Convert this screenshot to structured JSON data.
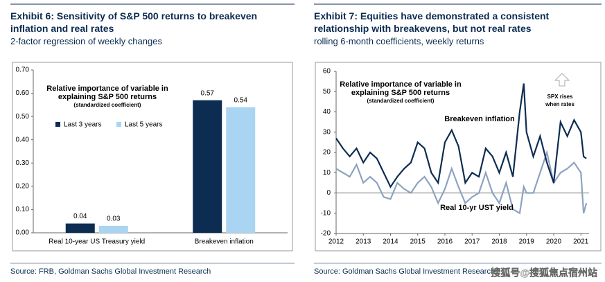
{
  "chart_data": [
    {
      "type": "bar",
      "title": "Exhibit 6: Sensitivity of S&P 500 returns to breakeven inflation and real rates",
      "subtitle": "2-factor regression of weekly changes",
      "annotations": [
        "Relative importance of variable in",
        "explaining S&P 500 returns",
        "(standardized coefficient)"
      ],
      "categories": [
        "Real 10-year US Treasury yield",
        "Breakeven inflation"
      ],
      "series": [
        {
          "name": "Last 3 years",
          "color": "#0c2c52",
          "values": [
            0.04,
            0.57
          ]
        },
        {
          "name": "Last 5 years",
          "color": "#a9d4f2",
          "values": [
            0.03,
            0.54
          ]
        }
      ],
      "ylim": [
        0,
        0.7
      ],
      "yticks": [
        {
          "value": 0,
          "label": "0.00"
        },
        {
          "value": 0.1,
          "label": "0.10"
        },
        {
          "value": 0.2,
          "label": "0.20"
        },
        {
          "value": 0.3,
          "label": "0.30"
        },
        {
          "value": 0.4,
          "label": "0.40"
        },
        {
          "value": 0.5,
          "label": "0.50"
        },
        {
          "value": 0.6,
          "label": "0.60"
        },
        {
          "value": 0.7,
          "label": "0.70"
        }
      ],
      "source": "Source: FRB, Goldman Sachs Global Investment Research"
    },
    {
      "type": "line",
      "title": "Exhibit 7: Equities have demonstrated a consistent relationship with breakevens, but not real rates",
      "subtitle": "rolling 6-month coefficients, weekly returns",
      "annotations": [
        "Relative importance of variable in",
        "explaining S&P 500 returns",
        "(standardized coefficient)",
        "SPX rises",
        "when rates"
      ],
      "x": [
        2012,
        2012.25,
        2012.5,
        2012.75,
        2013,
        2013.25,
        2013.5,
        2013.75,
        2014,
        2014.25,
        2014.5,
        2014.75,
        2015,
        2015.25,
        2015.5,
        2015.75,
        2016,
        2016.25,
        2016.5,
        2016.75,
        2017,
        2017.25,
        2017.5,
        2017.75,
        2018,
        2018.25,
        2018.5,
        2018.75,
        2018.9,
        2019,
        2019.25,
        2019.5,
        2019.75,
        2020,
        2020.25,
        2020.5,
        2020.75,
        2021,
        2021.1,
        2021.2
      ],
      "series": [
        {
          "name": "Breakeven inflation",
          "color": "#0c2c52",
          "values": [
            27,
            22,
            18,
            22,
            15,
            20,
            17,
            10,
            3,
            8,
            12,
            15,
            25,
            22,
            10,
            5,
            25,
            31,
            23,
            5,
            10,
            8,
            22,
            18,
            10,
            20,
            8,
            40,
            54,
            30,
            18,
            28,
            15,
            5,
            35,
            28,
            36,
            30,
            18,
            17
          ]
        },
        {
          "name": "Real 10-yr UST yield",
          "color": "#8da3bf",
          "values": [
            12,
            10,
            8,
            14,
            5,
            8,
            5,
            -2,
            -3,
            5,
            2,
            0,
            5,
            8,
            3,
            -5,
            2,
            12,
            3,
            -5,
            -2,
            0,
            10,
            0,
            -5,
            5,
            -8,
            -10,
            3,
            0,
            0,
            10,
            20,
            5,
            10,
            12,
            15,
            10,
            -10,
            -5
          ]
        }
      ],
      "xlim": [
        2012,
        2021.3
      ],
      "xticks": [
        2012,
        2013,
        2014,
        2015,
        2016,
        2017,
        2018,
        2019,
        2020,
        2021
      ],
      "ylim": [
        -20,
        60
      ],
      "yticks": [
        -20,
        -10,
        0,
        10,
        20,
        30,
        40,
        50,
        60
      ],
      "source": "Source: Goldman Sachs Global Investment Research"
    }
  ],
  "watermark": "搜狐号@搜狐焦点宿州站"
}
